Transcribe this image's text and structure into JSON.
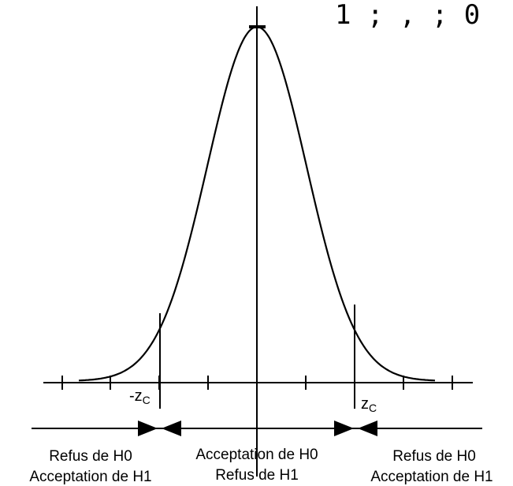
{
  "top_fragment": "1 ; , ; 0",
  "critical": {
    "left_prefix": "-z",
    "left_sub": "C",
    "right_prefix": "z",
    "right_sub": "C"
  },
  "regions": {
    "left": {
      "line1": "Refus de H0",
      "line2": "Acceptation de H1"
    },
    "center": {
      "line1": "Acceptation de H0",
      "line2": "Refus de H1"
    },
    "right": {
      "line1": "Refus de H0",
      "line2": "Acceptation de H1"
    }
  },
  "curve": {
    "type": "normal",
    "critical_z": 1.96
  }
}
